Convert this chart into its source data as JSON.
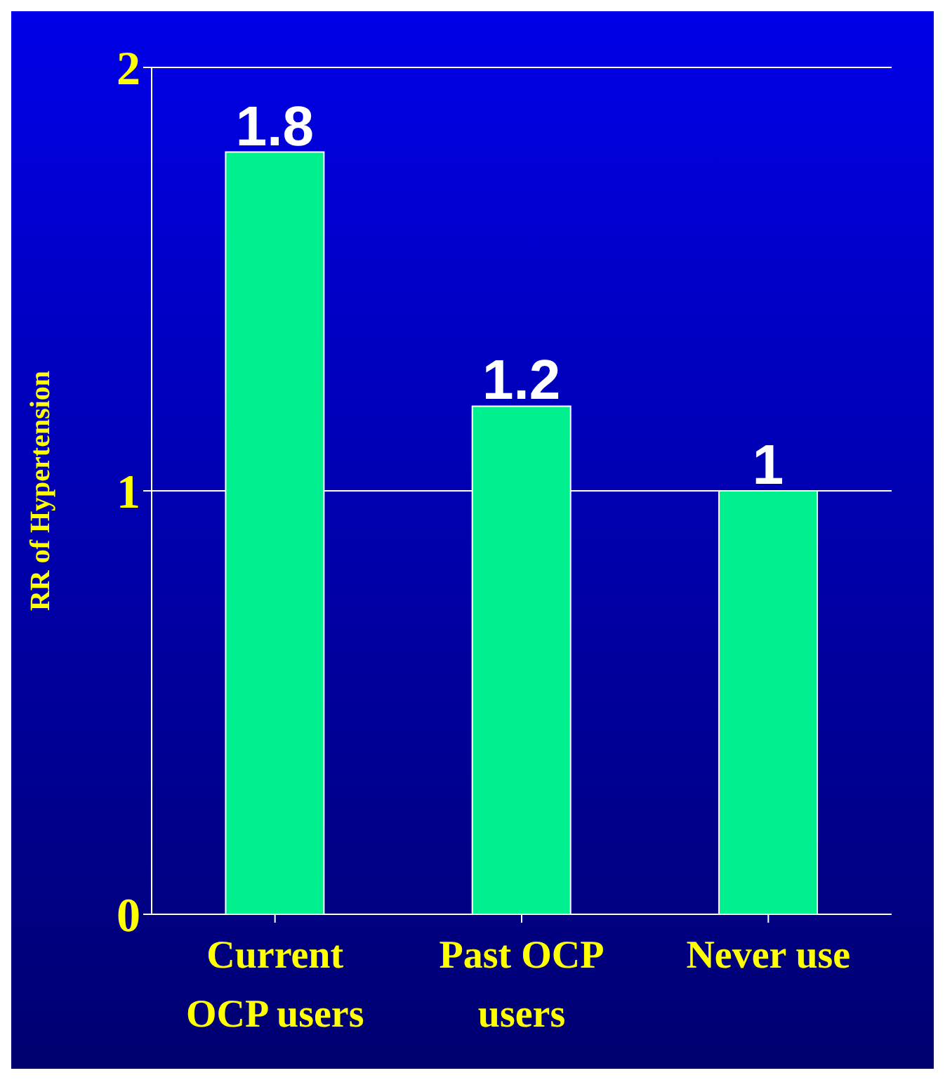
{
  "chart_data": {
    "type": "bar",
    "ylabel": "RR of Hypertension",
    "categories": [
      "Current OCP users",
      "Past OCP users",
      "Never use"
    ],
    "values": [
      1.8,
      1.2,
      1
    ],
    "color": "#00f090",
    "ylim": [
      0,
      2
    ],
    "yticks": [
      0,
      1,
      2
    ],
    "grid": "y",
    "data_labels": true
  }
}
